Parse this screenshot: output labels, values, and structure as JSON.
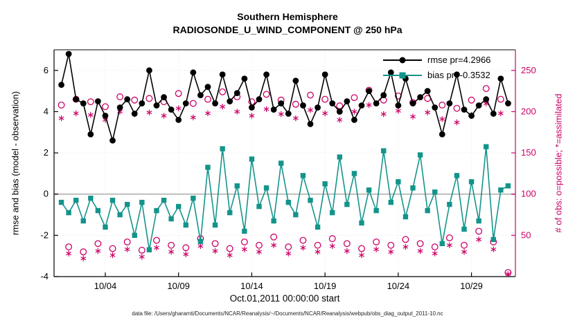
{
  "header": {
    "title": "Southern Hemisphere",
    "subtitle": "RADIOSONDE_U_WIND_COMPONENT @ 250 hPa"
  },
  "footer": {
    "note": "data file: /Users/gharamti/Documents/NCAR/Reanalysis/~/Documents/NCAR/Reanalysis/webpub/obs_diag_output_2011-10.nc"
  },
  "chart_data": {
    "type": "line",
    "title": "Southern Hemisphere",
    "subtitle": "RADIOSONDE_U_WIND_COMPONENT @ 250 hPa",
    "xlabel": "Oct.01,2011 00:00:00 start",
    "ylabel_left": "rmse and bias (model - observation)",
    "ylabel_right": "# of obs: o=possible; *=assimilated",
    "xlim": [
      0.5,
      32
    ],
    "ylim_left": [
      -4,
      7
    ],
    "ylim_right": [
      0,
      275
    ],
    "grid": true,
    "legend_position": "top-right-inside",
    "xticks": [
      {
        "value": 4,
        "label": "10/04"
      },
      {
        "value": 9,
        "label": "10/09"
      },
      {
        "value": 14,
        "label": "10/14"
      },
      {
        "value": 19,
        "label": "10/19"
      },
      {
        "value": 24,
        "label": "10/24"
      },
      {
        "value": 29,
        "label": "10/29"
      }
    ],
    "yticks_left": [
      -4,
      -2,
      0,
      2,
      4,
      6
    ],
    "yticks_right": [
      50,
      100,
      150,
      200,
      250
    ],
    "colors": {
      "rmse": "#000000",
      "bias": "#13948b",
      "obs": "#cc0066",
      "zero_line": "#bdbdbd",
      "grid": "#e4e4e4",
      "axis_left": "#000000",
      "axis_right": "#cc0066"
    },
    "legend": [
      {
        "label": "rmse pr=4.2966",
        "marker": "filled-circle",
        "color": "#000000"
      },
      {
        "label": "bias pr=-0.3532",
        "marker": "filled-square",
        "color": "#13948b"
      }
    ],
    "x_days": [
      1,
      1.5,
      2,
      2.5,
      3,
      3.5,
      4,
      4.5,
      5,
      5.5,
      6,
      6.5,
      7,
      7.5,
      8,
      8.5,
      9,
      9.5,
      10,
      10.5,
      11,
      11.5,
      12,
      12.5,
      13,
      13.5,
      14,
      14.5,
      15,
      15.5,
      16,
      16.5,
      17,
      17.5,
      18,
      18.5,
      19,
      19.5,
      20,
      20.5,
      21,
      21.5,
      22,
      22.5,
      23,
      23.5,
      24,
      24.5,
      25,
      25.5,
      26,
      26.5,
      27,
      27.5,
      28,
      28.5,
      29,
      29.5,
      30,
      30.5,
      31,
      31.5
    ],
    "series": [
      {
        "name": "rmse pr=4.2966",
        "axis": "left",
        "marker": "filled-circle",
        "line": true,
        "color": "#000000",
        "values": [
          5.3,
          6.8,
          4.6,
          4.4,
          2.9,
          4.5,
          3.8,
          2.6,
          4.2,
          4.6,
          3.9,
          4.4,
          6.0,
          4.3,
          4.7,
          4.1,
          3.6,
          4.4,
          5.9,
          4.8,
          5.2,
          4.4,
          5.8,
          4.5,
          4.9,
          5.6,
          4.2,
          4.6,
          5.8,
          4.1,
          4.4,
          3.9,
          5.5,
          4.3,
          3.4,
          4.2,
          5.8,
          4.4,
          4.0,
          4.5,
          3.6,
          4.3,
          5.0,
          4.4,
          4.8,
          5.9,
          4.3,
          5.6,
          4.4,
          4.7,
          5.0,
          4.2,
          2.9,
          4.4,
          5.8,
          4.1,
          3.8,
          4.3,
          4.6,
          3.9,
          5.6,
          4.4
        ]
      },
      {
        "name": "bias pr=-0.3532",
        "axis": "left",
        "marker": "filled-square",
        "line": true,
        "color": "#13948b",
        "values": [
          -0.4,
          -0.9,
          -0.3,
          -1.3,
          -0.2,
          -0.8,
          -1.6,
          -0.3,
          -1.0,
          -0.5,
          -2.0,
          -0.4,
          -2.7,
          -0.8,
          -0.3,
          -1.2,
          -0.6,
          -1.5,
          -0.2,
          -2.3,
          1.3,
          -1.5,
          2.2,
          -0.9,
          0.4,
          -1.8,
          1.7,
          -0.6,
          0.3,
          -1.3,
          1.5,
          -0.4,
          -1.0,
          0.9,
          -0.3,
          -1.6,
          0.5,
          -0.9,
          1.8,
          -0.5,
          1.0,
          -1.4,
          0.2,
          -0.8,
          2.1,
          -0.4,
          0.6,
          -1.1,
          0.3,
          1.9,
          -0.8,
          0.1,
          -2.4,
          -0.5,
          0.9,
          -1.7,
          0.6,
          -1.3,
          2.3,
          -2.2,
          0.2,
          0.4
        ]
      },
      {
        "name": "N possible",
        "axis": "right",
        "marker": "open-circle",
        "line": false,
        "color": "#cc0066",
        "values": [
          208,
          36,
          215,
          30,
          212,
          40,
          206,
          34,
          218,
          42,
          214,
          32,
          216,
          44,
          212,
          38,
          222,
          35,
          210,
          46,
          215,
          40,
          224,
          34,
          218,
          42,
          212,
          38,
          221,
          48,
          214,
          36,
          209,
          44,
          220,
          38,
          215,
          46,
          207,
          40,
          217,
          34,
          226,
          42,
          214,
          38,
          219,
          45,
          211,
          40,
          216,
          36,
          208,
          47,
          204,
          38,
          214,
          55,
          228,
          42,
          215,
          5
        ]
      },
      {
        "name": "N assimilated",
        "axis": "right",
        "marker": "asterisk",
        "line": false,
        "color": "#cc0066",
        "values": [
          192,
          28,
          198,
          22,
          196,
          31,
          190,
          26,
          200,
          33,
          197,
          24,
          199,
          35,
          195,
          30,
          204,
          27,
          193,
          37,
          198,
          31,
          206,
          26,
          200,
          33,
          195,
          30,
          203,
          38,
          197,
          28,
          192,
          35,
          202,
          30,
          198,
          37,
          190,
          31,
          200,
          26,
          208,
          33,
          197,
          30,
          201,
          36,
          194,
          31,
          199,
          28,
          191,
          38,
          187,
          30,
          196,
          45,
          210,
          33,
          198,
          3
        ]
      }
    ]
  }
}
